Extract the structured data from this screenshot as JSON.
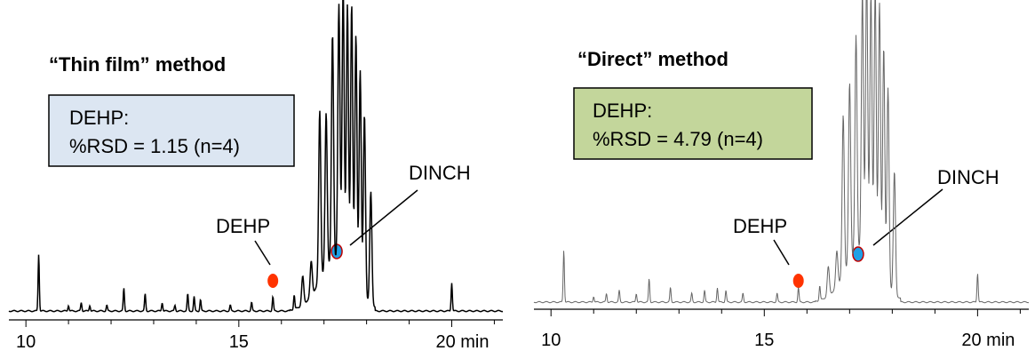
{
  "chart_data": [
    {
      "type": "line",
      "title": "“Thin film” method",
      "info_box": {
        "line1": "DEHP:",
        "line2": "%RSD = 1.15 (n=4)",
        "fill": "#dce6f2"
      },
      "line_color": "#000000",
      "xlim": [
        9.6,
        21.2
      ],
      "x_ticks": [
        {
          "value": 10,
          "label": "10"
        },
        {
          "value": 15,
          "label": "15"
        },
        {
          "value": 20,
          "label": "20 min"
        }
      ],
      "markers": [
        {
          "name": "DEHP",
          "label": "DEHP",
          "x": 15.8,
          "color": "#ff3300"
        },
        {
          "name": "DINCH",
          "label": "DINCH",
          "x": 17.3,
          "color": "#1ea0e6"
        }
      ],
      "peaks": [
        {
          "x": 10.3,
          "h": 0.2
        },
        {
          "x": 11.0,
          "h": 0.02
        },
        {
          "x": 11.3,
          "h": 0.03
        },
        {
          "x": 11.5,
          "h": 0.02
        },
        {
          "x": 11.9,
          "h": 0.02
        },
        {
          "x": 12.3,
          "h": 0.08
        },
        {
          "x": 12.8,
          "h": 0.06
        },
        {
          "x": 13.2,
          "h": 0.03
        },
        {
          "x": 13.5,
          "h": 0.02
        },
        {
          "x": 13.8,
          "h": 0.06
        },
        {
          "x": 13.95,
          "h": 0.05
        },
        {
          "x": 14.1,
          "h": 0.04
        },
        {
          "x": 14.8,
          "h": 0.02
        },
        {
          "x": 15.3,
          "h": 0.03
        },
        {
          "x": 15.8,
          "h": 0.05
        },
        {
          "x": 16.3,
          "h": 0.05
        },
        {
          "x": 16.5,
          "h": 0.1
        },
        {
          "x": 16.7,
          "h": 0.12
        },
        {
          "x": 16.9,
          "h": 0.6
        },
        {
          "x": 17.05,
          "h": 0.55
        },
        {
          "x": 17.2,
          "h": 0.8
        },
        {
          "x": 17.35,
          "h": 0.9
        },
        {
          "x": 17.45,
          "h": 0.98
        },
        {
          "x": 17.55,
          "h": 0.93
        },
        {
          "x": 17.65,
          "h": 0.96
        },
        {
          "x": 17.75,
          "h": 0.88
        },
        {
          "x": 17.85,
          "h": 0.78
        },
        {
          "x": 17.95,
          "h": 0.65
        },
        {
          "x": 18.1,
          "h": 0.4
        },
        {
          "x": 20.0,
          "h": 0.1
        }
      ]
    },
    {
      "type": "line",
      "title": "“Direct” method",
      "info_box": {
        "line1": "DEHP:",
        "line2": "%RSD = 4.79 (n=4)",
        "fill": "#c3d69b"
      },
      "line_color": "#666666",
      "xlim": [
        9.6,
        21.2
      ],
      "x_ticks": [
        {
          "value": 10,
          "label": "10"
        },
        {
          "value": 15,
          "label": "15"
        },
        {
          "value": 20,
          "label": "20 min"
        }
      ],
      "markers": [
        {
          "name": "DEHP",
          "label": "DEHP",
          "x": 15.8,
          "color": "#ff3300"
        },
        {
          "name": "DINCH",
          "label": "DINCH",
          "x": 17.2,
          "color": "#1ea0e6"
        }
      ],
      "peaks": [
        {
          "x": 10.3,
          "h": 0.18
        },
        {
          "x": 11.0,
          "h": 0.02
        },
        {
          "x": 11.3,
          "h": 0.03
        },
        {
          "x": 11.6,
          "h": 0.04
        },
        {
          "x": 12.0,
          "h": 0.03
        },
        {
          "x": 12.3,
          "h": 0.08
        },
        {
          "x": 12.8,
          "h": 0.05
        },
        {
          "x": 13.3,
          "h": 0.03
        },
        {
          "x": 13.6,
          "h": 0.04
        },
        {
          "x": 13.9,
          "h": 0.05
        },
        {
          "x": 14.1,
          "h": 0.04
        },
        {
          "x": 14.5,
          "h": 0.03
        },
        {
          "x": 15.3,
          "h": 0.03
        },
        {
          "x": 15.8,
          "h": 0.05
        },
        {
          "x": 16.3,
          "h": 0.05
        },
        {
          "x": 16.5,
          "h": 0.1
        },
        {
          "x": 16.7,
          "h": 0.12
        },
        {
          "x": 16.85,
          "h": 0.55
        },
        {
          "x": 17.0,
          "h": 0.62
        },
        {
          "x": 17.15,
          "h": 0.75
        },
        {
          "x": 17.3,
          "h": 0.88
        },
        {
          "x": 17.4,
          "h": 0.96
        },
        {
          "x": 17.5,
          "h": 0.9
        },
        {
          "x": 17.6,
          "h": 0.95
        },
        {
          "x": 17.7,
          "h": 0.92
        },
        {
          "x": 17.8,
          "h": 0.8
        },
        {
          "x": 17.9,
          "h": 0.68
        },
        {
          "x": 18.05,
          "h": 0.42
        },
        {
          "x": 20.0,
          "h": 0.1
        }
      ]
    }
  ]
}
